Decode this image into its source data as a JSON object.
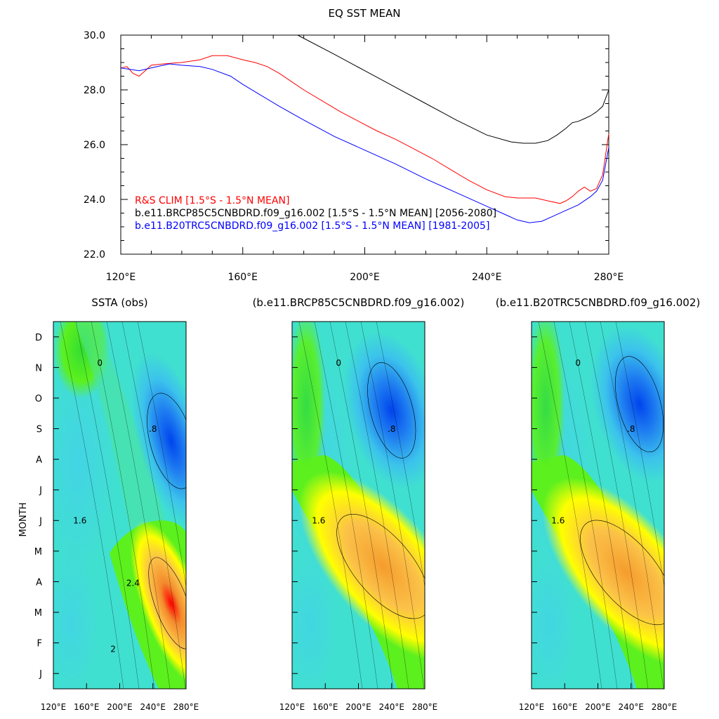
{
  "chart_data": [
    {
      "type": "line",
      "title": "EQ SST MEAN",
      "xlabel": "",
      "ylabel": "",
      "xlim": [
        120,
        280
      ],
      "ylim": [
        22,
        30
      ],
      "x_ticks": [
        120,
        160,
        200,
        240,
        280
      ],
      "x_tick_labels": [
        "120°E",
        "160°E",
        "200°E",
        "240°E",
        "280°E"
      ],
      "y_ticks": [
        22,
        24,
        26,
        28,
        30
      ],
      "y_tick_labels": [
        "22.0",
        "24.0",
        "26.0",
        "28.0",
        "30.0"
      ],
      "grid": false,
      "legend_position": "bottom-left",
      "series": [
        {
          "name": "R&S CLIM [1.5°S - 1.5°N MEAN]",
          "color": "#ff0000",
          "x": [
            120,
            122,
            124,
            126,
            128,
            130,
            134,
            140,
            146,
            150,
            155,
            160,
            164,
            168,
            172,
            176,
            180,
            186,
            192,
            198,
            204,
            210,
            216,
            222,
            228,
            234,
            240,
            246,
            250,
            256,
            260,
            264,
            266,
            268,
            270,
            272,
            274,
            276,
            278,
            280
          ],
          "y": [
            28.8,
            28.85,
            28.6,
            28.5,
            28.7,
            28.9,
            28.95,
            29.0,
            29.1,
            29.25,
            29.25,
            29.1,
            29.0,
            28.85,
            28.6,
            28.3,
            28.0,
            27.6,
            27.2,
            26.85,
            26.5,
            26.2,
            25.85,
            25.5,
            25.1,
            24.7,
            24.35,
            24.1,
            24.05,
            24.05,
            23.95,
            23.85,
            23.95,
            24.1,
            24.3,
            24.45,
            24.3,
            24.4,
            24.9,
            26.4
          ]
        },
        {
          "name": "b.e11.BRCP85C5CNBDRD.f09_g16.002 [1.5°S - 1.5°N MEAN] [2056-2080]",
          "color": "#000000",
          "x": [
            178,
            190,
            200,
            210,
            220,
            230,
            240,
            248,
            252,
            256,
            260,
            263,
            266,
            268,
            270,
            272,
            274,
            276,
            278,
            280
          ],
          "y": [
            30.0,
            29.3,
            28.7,
            28.1,
            27.5,
            26.9,
            26.35,
            26.1,
            26.05,
            26.05,
            26.15,
            26.35,
            26.6,
            26.8,
            26.85,
            26.95,
            27.05,
            27.2,
            27.4,
            28.0
          ]
        },
        {
          "name": "b.e11.B20TRC5CNBDRD.f09_g16.002 [1.5°S - 1.5°N MEAN] [1981-2005]",
          "color": "#0000ff",
          "x": [
            120,
            126,
            132,
            136,
            140,
            146,
            150,
            156,
            160,
            166,
            172,
            180,
            190,
            200,
            210,
            220,
            230,
            240,
            246,
            250,
            254,
            258,
            262,
            266,
            270,
            274,
            276,
            278,
            280
          ],
          "y": [
            28.8,
            28.7,
            28.85,
            28.95,
            28.9,
            28.85,
            28.75,
            28.5,
            28.2,
            27.8,
            27.4,
            26.9,
            26.3,
            25.8,
            25.3,
            24.75,
            24.25,
            23.75,
            23.45,
            23.25,
            23.15,
            23.2,
            23.4,
            23.6,
            23.8,
            24.1,
            24.3,
            24.7,
            25.9
          ]
        }
      ]
    },
    {
      "type": "heatmap",
      "title": "SSTA (obs)",
      "xlabel": "",
      "ylabel": "MONTH",
      "xlim": [
        120,
        280
      ],
      "x_tick_labels": [
        "120°E",
        "160°E",
        "200°E",
        "240°E",
        "280°E"
      ],
      "y_tick_labels": [
        "J",
        "F",
        "M",
        "A",
        "M",
        "J",
        "J",
        "A",
        "S",
        "O",
        "N",
        "D"
      ],
      "contour_labels": [
        "0",
        ".8",
        "1.6",
        "2.4",
        "2"
      ],
      "features": [
        {
          "type": "warm",
          "lon": 262,
          "month": 2.3,
          "value": 3.2
        },
        {
          "type": "cold",
          "lon": 262,
          "month": 7.6,
          "value": -2.2
        }
      ]
    },
    {
      "type": "heatmap",
      "title": "(b.e11.BRCP85C5CNBDRD.f09_g16.002)",
      "xlabel": "",
      "ylabel": "",
      "xlim": [
        120,
        280
      ],
      "x_tick_labels": [
        "120°E",
        "160°E",
        "200°E",
        "240°E",
        "280°E"
      ],
      "contour_labels": [
        "0",
        ".8",
        "1.6"
      ],
      "features": [
        {
          "type": "warm",
          "lon": 230,
          "month": 3.5,
          "value": 2.3
        },
        {
          "type": "cold",
          "lon": 240,
          "month": 8.6,
          "value": -2.0
        }
      ]
    },
    {
      "type": "heatmap",
      "title": "(b.e11.B20TRC5CNBDRD.f09_g16.002)",
      "xlabel": "",
      "ylabel": "",
      "xlim": [
        120,
        280
      ],
      "x_tick_labels": [
        "120°E",
        "160°E",
        "200°E",
        "240°E",
        "280°E"
      ],
      "contour_labels": [
        "0",
        ".8",
        "1.6"
      ],
      "features": [
        {
          "type": "warm",
          "lon": 235,
          "month": 3.3,
          "value": 2.3
        },
        {
          "type": "cold",
          "lon": 250,
          "month": 8.8,
          "value": -2.4
        }
      ]
    }
  ]
}
